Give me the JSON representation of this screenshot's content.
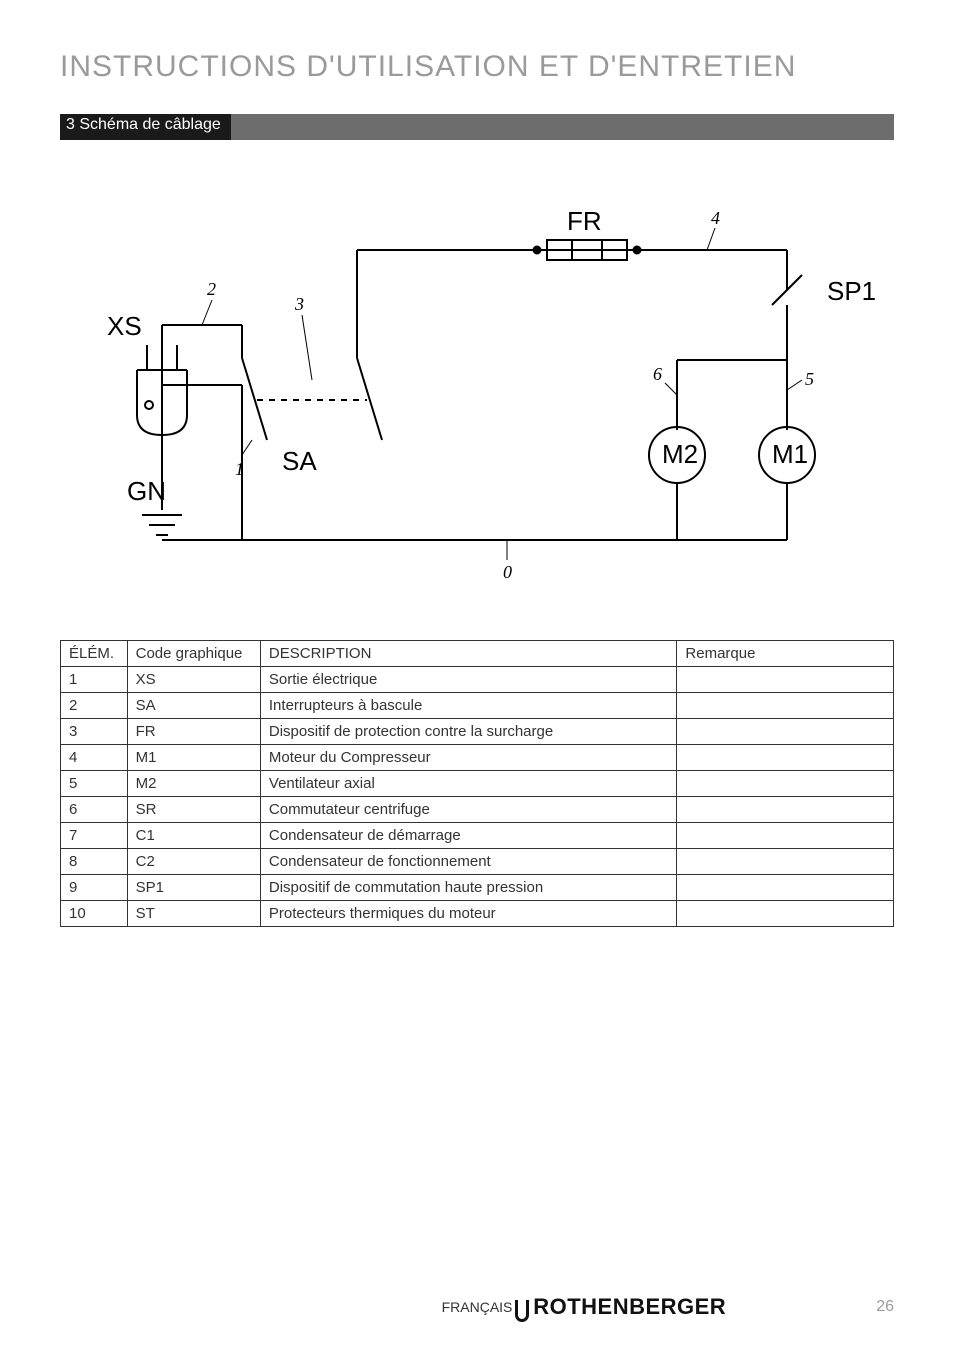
{
  "page": {
    "title": "INSTRUCTIONS D'UTILISATION ET D'ENTRETIEN",
    "section_label": "3 Schéma de câblage",
    "footer_lang": "FRANÇAIS",
    "footer_brand": "ROTHENBERGER",
    "footer_page": "26"
  },
  "diagram": {
    "labels": {
      "XS": "XS",
      "GN": "GN",
      "SA": "SA",
      "FR": "FR",
      "SP1": "SP1",
      "M1": "M1",
      "M2": "M2"
    },
    "numbers": [
      "0",
      "1",
      "2",
      "3",
      "4",
      "5",
      "6"
    ],
    "stroke": "#000000",
    "stroke_width": 2,
    "label_font_size": 26,
    "number_font_size": 18,
    "number_font_family": "Georgia, 'Times New Roman', serif"
  },
  "table": {
    "headers": {
      "elem": "ÉLÉM.",
      "code": "Code graphique",
      "desc": "DESCRIPTION",
      "remark": "Remarque"
    },
    "rows": [
      {
        "elem": "1",
        "code": "XS",
        "desc": "Sortie électrique",
        "remark": ""
      },
      {
        "elem": "2",
        "code": "SA",
        "desc": "Interrupteurs à bascule",
        "remark": ""
      },
      {
        "elem": "3",
        "code": "FR",
        "desc": "Dispositif de protection contre la surcharge",
        "remark": ""
      },
      {
        "elem": "4",
        "code": "M1",
        "desc": "Moteur du Compresseur",
        "remark": ""
      },
      {
        "elem": "5",
        "code": "M2",
        "desc": "Ventilateur axial",
        "remark": ""
      },
      {
        "elem": "6",
        "code": "SR",
        "desc": "Commutateur centrifuge",
        "remark": ""
      },
      {
        "elem": "7",
        "code": "C1",
        "desc": "Condensateur de démarrage",
        "remark": ""
      },
      {
        "elem": "8",
        "code": "C2",
        "desc": "Condensateur de fonctionnement",
        "remark": ""
      },
      {
        "elem": "9",
        "code": "SP1",
        "desc": "Dispositif de commutation haute pression",
        "remark": ""
      },
      {
        "elem": "10",
        "code": "ST",
        "desc": "Protecteurs thermiques du moteur",
        "remark": ""
      }
    ]
  }
}
